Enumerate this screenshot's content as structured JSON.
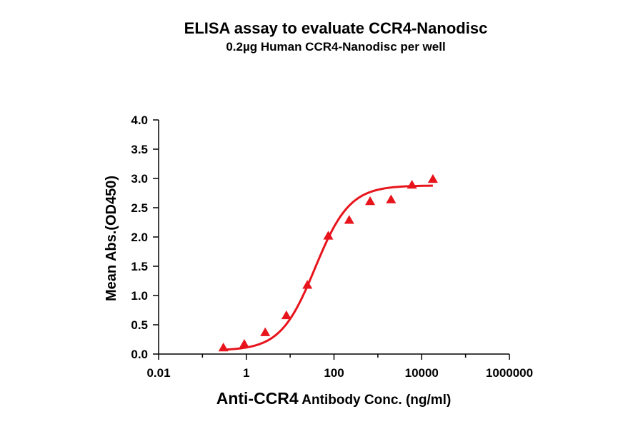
{
  "chart_data": {
    "type": "scatter",
    "title": "ELISA assay to evaluate CCR4-Nanodisc",
    "subtitle": "0.2µg Human CCR4-Nanodisc per well",
    "xlabel_main": "Anti-CCR4",
    "xlabel_rest": " Antibody Conc. (ng/ml)",
    "ylabel": "Mean Abs.(OD450)",
    "xscale": "log",
    "xlim": [
      0.01,
      1000000
    ],
    "ylim": [
      0,
      4.0
    ],
    "x_ticks": [
      0.01,
      1,
      100,
      10000,
      1000000
    ],
    "x_tick_labels": [
      "0.01",
      "1",
      "100",
      "10000",
      "1000000"
    ],
    "y_ticks": [
      0,
      0.5,
      1.0,
      1.5,
      2.0,
      2.5,
      3.0,
      3.5,
      4.0
    ],
    "y_tick_labels": [
      "0.0",
      "0.5",
      "1.0",
      "1.5",
      "2.0",
      "2.5",
      "3.0",
      "3.5",
      "4.0"
    ],
    "grid": false,
    "marker": "triangle",
    "color": "#e8141c",
    "series": [
      {
        "x": [
          0.3,
          0.9,
          2.7,
          8.2,
          24.7,
          74,
          222,
          667,
          2000,
          6000,
          18000
        ],
        "y": [
          0.11,
          0.17,
          0.37,
          0.66,
          1.18,
          2.02,
          2.29,
          2.61,
          2.64,
          2.89,
          2.99
        ]
      }
    ],
    "fit": {
      "model": "4PL",
      "bottom": 0.06,
      "top": 2.88,
      "ec50": 37,
      "hill": 1.1
    }
  }
}
